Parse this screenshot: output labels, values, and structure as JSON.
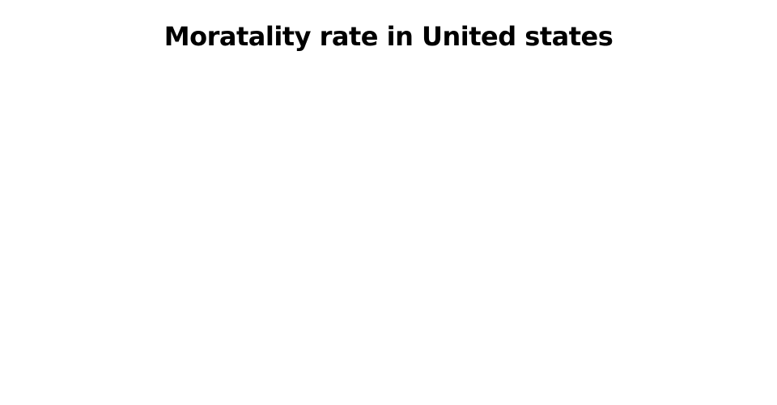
{
  "chart_data": {
    "title": "Moratality rate in United states"
  }
}
